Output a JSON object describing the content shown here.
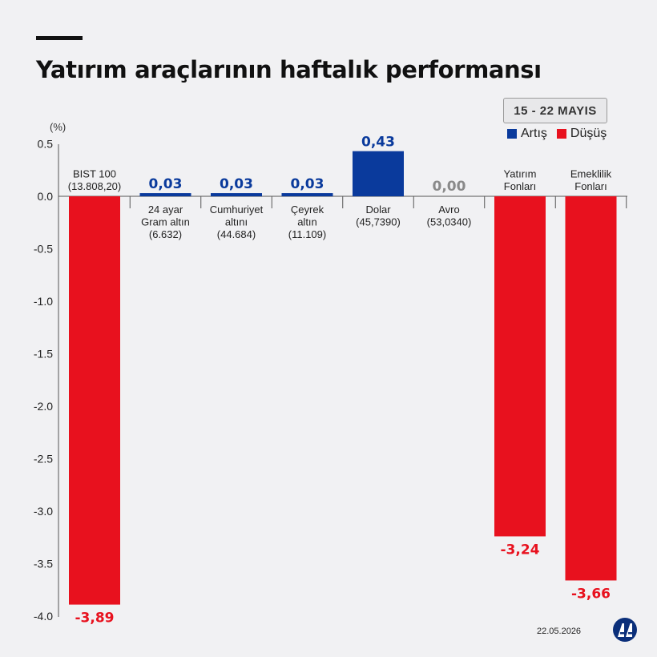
{
  "header": {
    "title": "Yatırım araçlarının haftalık performansı"
  },
  "date_range": "15 - 22 MAYIS",
  "legend": [
    {
      "label": "Artış",
      "color": "#0a3a9c"
    },
    {
      "label": "Düşüş",
      "color": "#e8111e"
    }
  ],
  "footer": {
    "date": "22.05.2026",
    "logo_icon": "aa-logo-icon"
  },
  "chart_data": {
    "type": "bar",
    "ylabel": "(%)",
    "ylim": [
      -4.0,
      0.5
    ],
    "yticks": [
      "0.5",
      "0.0",
      "-0.5",
      "-1.0",
      "-1.5",
      "-2.0",
      "-2.5",
      "-3.0",
      "-3.5",
      "-4.0"
    ],
    "positive_color": "#0a3a9c",
    "negative_color": "#e8111e",
    "zero_label_color": "#8a8a8a",
    "categories": [
      {
        "lines": [
          "BIST 100",
          "(13.808,20)"
        ],
        "value": -3.89,
        "label": "-3,89"
      },
      {
        "lines": [
          "24 ayar",
          "Gram altın",
          "(6.632)"
        ],
        "value": 0.03,
        "label": "0,03"
      },
      {
        "lines": [
          "Cumhuriyet",
          "altını",
          "(44.684)"
        ],
        "value": 0.03,
        "label": "0,03"
      },
      {
        "lines": [
          "Çeyrek",
          "altın",
          "(11.109)"
        ],
        "value": 0.03,
        "label": "0,03"
      },
      {
        "lines": [
          "Dolar",
          "(45,7390)"
        ],
        "value": 0.43,
        "label": "0,43"
      },
      {
        "lines": [
          "Avro",
          "(53,0340)"
        ],
        "value": 0.0,
        "label": "0,00"
      },
      {
        "lines": [
          "Yatırım",
          "Fonları"
        ],
        "value": -3.24,
        "label": "-3,24"
      },
      {
        "lines": [
          "Emeklilik",
          "Fonları"
        ],
        "value": -3.66,
        "label": "-3,66"
      }
    ]
  }
}
